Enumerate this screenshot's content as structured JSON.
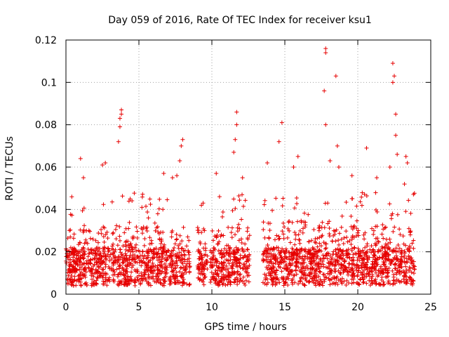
{
  "chart_data": {
    "type": "scatter",
    "title": "Day 059 of 2016, Rate Of TEC Index for receiver ksu1",
    "xlabel": "GPS time / hours",
    "ylabel": "ROTI / TECUs",
    "xlim": [
      0,
      25
    ],
    "ylim": [
      0,
      0.12
    ],
    "x_ticks": [
      "0",
      "5",
      "10",
      "15",
      "20",
      "25"
    ],
    "y_ticks": [
      "0",
      "0.02",
      "0.04",
      "0.06",
      "0.08",
      "0.1",
      "0.12"
    ],
    "grid": true,
    "marker": "+",
    "series": [
      {
        "color": "#e60000",
        "segments": [
          {
            "x": [
              0.0,
              8.5
            ]
          },
          {
            "x": [
              9.0,
              9.7
            ]
          },
          {
            "x": [
              9.9,
              12.6
            ]
          },
          {
            "x": [
              13.5,
              23.9
            ]
          }
        ],
        "points": [
          [
            0.3,
            0.027
          ],
          [
            0.4,
            0.046
          ],
          [
            1.0,
            0.064
          ],
          [
            1.2,
            0.055
          ],
          [
            2.5,
            0.061
          ],
          [
            2.7,
            0.062
          ],
          [
            3.6,
            0.072
          ],
          [
            3.7,
            0.079
          ],
          [
            3.7,
            0.083
          ],
          [
            3.8,
            0.087
          ],
          [
            3.8,
            0.085
          ],
          [
            4.4,
            0.045
          ],
          [
            6.7,
            0.057
          ],
          [
            7.3,
            0.055
          ],
          [
            7.6,
            0.056
          ],
          [
            7.8,
            0.063
          ],
          [
            7.9,
            0.07
          ],
          [
            8.0,
            0.073
          ],
          [
            9.4,
            0.043
          ],
          [
            10.3,
            0.057
          ],
          [
            11.5,
            0.067
          ],
          [
            11.6,
            0.073
          ],
          [
            11.7,
            0.08
          ],
          [
            11.7,
            0.086
          ],
          [
            12.1,
            0.055
          ],
          [
            13.8,
            0.062
          ],
          [
            14.6,
            0.072
          ],
          [
            14.8,
            0.081
          ],
          [
            15.6,
            0.06
          ],
          [
            15.9,
            0.065
          ],
          [
            17.7,
            0.096
          ],
          [
            17.8,
            0.08
          ],
          [
            17.8,
            0.114
          ],
          [
            17.8,
            0.116
          ],
          [
            18.1,
            0.063
          ],
          [
            18.5,
            0.103
          ],
          [
            18.6,
            0.07
          ],
          [
            18.7,
            0.06
          ],
          [
            19.6,
            0.056
          ],
          [
            20.6,
            0.069
          ],
          [
            21.3,
            0.055
          ],
          [
            22.2,
            0.06
          ],
          [
            22.4,
            0.1
          ],
          [
            22.4,
            0.109
          ],
          [
            22.5,
            0.103
          ],
          [
            22.6,
            0.085
          ],
          [
            22.6,
            0.075
          ],
          [
            22.7,
            0.066
          ],
          [
            23.3,
            0.065
          ],
          [
            23.4,
            0.062
          ],
          [
            23.2,
            0.052
          ],
          [
            23.6,
            0.028
          ]
        ]
      }
    ]
  }
}
